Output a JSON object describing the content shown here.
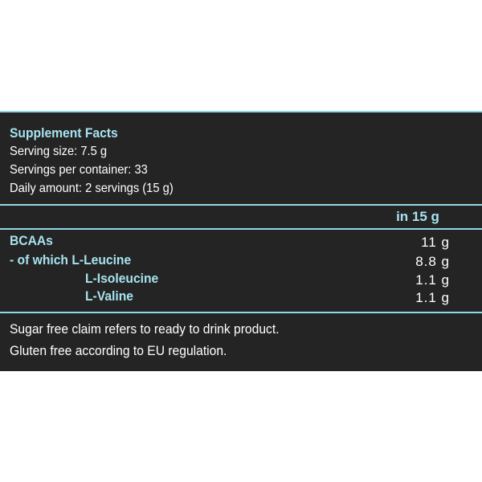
{
  "colors": {
    "background": "#242424",
    "text": "#ffffff",
    "accent_text": "#a6e3f0",
    "rule": "#8fd8ea",
    "page": "#ffffff"
  },
  "facts": {
    "title": "Supplement Facts",
    "serving_size": "Serving size:  7.5 g",
    "servings_per_container": "Servings per container: 33",
    "daily_amount": "Daily amount: 2 servings (15 g)",
    "column_header": "in 15 g",
    "rows": [
      {
        "label": "BCAAs",
        "value": "11 g"
      },
      {
        "label": "- of which L-Leucine",
        "value": "8.8 g"
      },
      {
        "label": "L-Isoleucine",
        "value": "1.1 g"
      },
      {
        "label": "L-Valine",
        "value": "1.1 g"
      }
    ],
    "notes": [
      "Sugar free claim refers to ready to drink product.",
      "Gluten free according to EU regulation."
    ]
  }
}
